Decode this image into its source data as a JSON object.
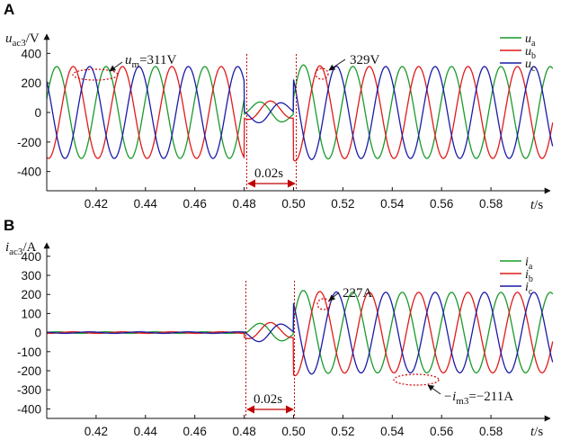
{
  "chart_data": [
    {
      "type": "line",
      "panel_label": "A",
      "ylabel": {
        "symbol": "u",
        "sub": "ac3",
        "unit": "/V"
      },
      "xlabel": {
        "symbol": "t",
        "unit": "/s"
      },
      "xlim": [
        0.4,
        0.605
      ],
      "ylim": [
        -530,
        530
      ],
      "xticks": [
        0.42,
        0.44,
        0.46,
        0.48,
        0.5,
        0.52,
        0.54,
        0.56,
        0.58
      ],
      "xtick_labels": [
        "0.42",
        "0.44",
        "0.46",
        "0.48",
        "0.50",
        "0.52",
        "0.54",
        "0.56",
        "0.58"
      ],
      "yticks": [
        -400,
        -200,
        0,
        200,
        400
      ],
      "ytick_labels": [
        "-400",
        "-200",
        "0",
        "200",
        "400"
      ],
      "legend_position": "top-right",
      "series": [
        {
          "name": "u",
          "sub": "a",
          "color": "#1a9a2a"
        },
        {
          "name": "u",
          "sub": "b",
          "color": "#e01a1a"
        },
        {
          "name": "u",
          "sub": "c",
          "color": "#1a1aa8"
        }
      ],
      "signal": {
        "frequency_hz": 50,
        "amplitude_pre_fault": 311,
        "fault_start": 0.48,
        "fault_end": 0.5,
        "peak_post_fault": 329,
        "amplitude_post_fault": 311
      },
      "fault_markers": [
        0.48,
        0.5
      ],
      "duration_label": "0.02s",
      "annotations": [
        {
          "text_main": "u",
          "text_sub": "m",
          "text_rest": "=311V"
        },
        {
          "text_main": "329V",
          "text_sub": "",
          "text_rest": ""
        }
      ]
    },
    {
      "type": "line",
      "panel_label": "B",
      "ylabel": {
        "symbol": "i",
        "sub": "ac3",
        "unit": "/A"
      },
      "xlabel": {
        "symbol": "t",
        "unit": "/s"
      },
      "xlim": [
        0.4,
        0.605
      ],
      "ylim": [
        -450,
        470
      ],
      "xticks": [
        0.42,
        0.44,
        0.46,
        0.48,
        0.5,
        0.52,
        0.54,
        0.56,
        0.58
      ],
      "xtick_labels": [
        "0.42",
        "0.44",
        "0.46",
        "0.48",
        "0.50",
        "0.52",
        "0.54",
        "0.56",
        "0.58"
      ],
      "yticks": [
        -400,
        -300,
        -200,
        -100,
        0,
        100,
        200,
        300,
        400
      ],
      "ytick_labels": [
        "-400",
        "-300",
        "-200",
        "-100",
        "0",
        "100",
        "200",
        "300",
        "400"
      ],
      "legend_position": "top-right",
      "series": [
        {
          "name": "i",
          "sub": "a",
          "color": "#1a9a2a"
        },
        {
          "name": "i",
          "sub": "b",
          "color": "#e01a1a"
        },
        {
          "name": "i",
          "sub": "c",
          "color": "#1a1aa8"
        }
      ],
      "signal": {
        "frequency_hz": 50,
        "amplitude_pre_fault": 4,
        "fault_start": 0.48,
        "fault_end": 0.5,
        "peak_post_fault": 227,
        "amplitude_post_fault": 211
      },
      "fault_markers": [
        0.48,
        0.5
      ],
      "duration_label": "0.02s",
      "annotations": [
        {
          "text_main": "227A",
          "text_sub": "",
          "text_rest": ""
        },
        {
          "text_main": "−i",
          "text_sub": "m3",
          "text_rest": "=−211A"
        }
      ]
    }
  ]
}
